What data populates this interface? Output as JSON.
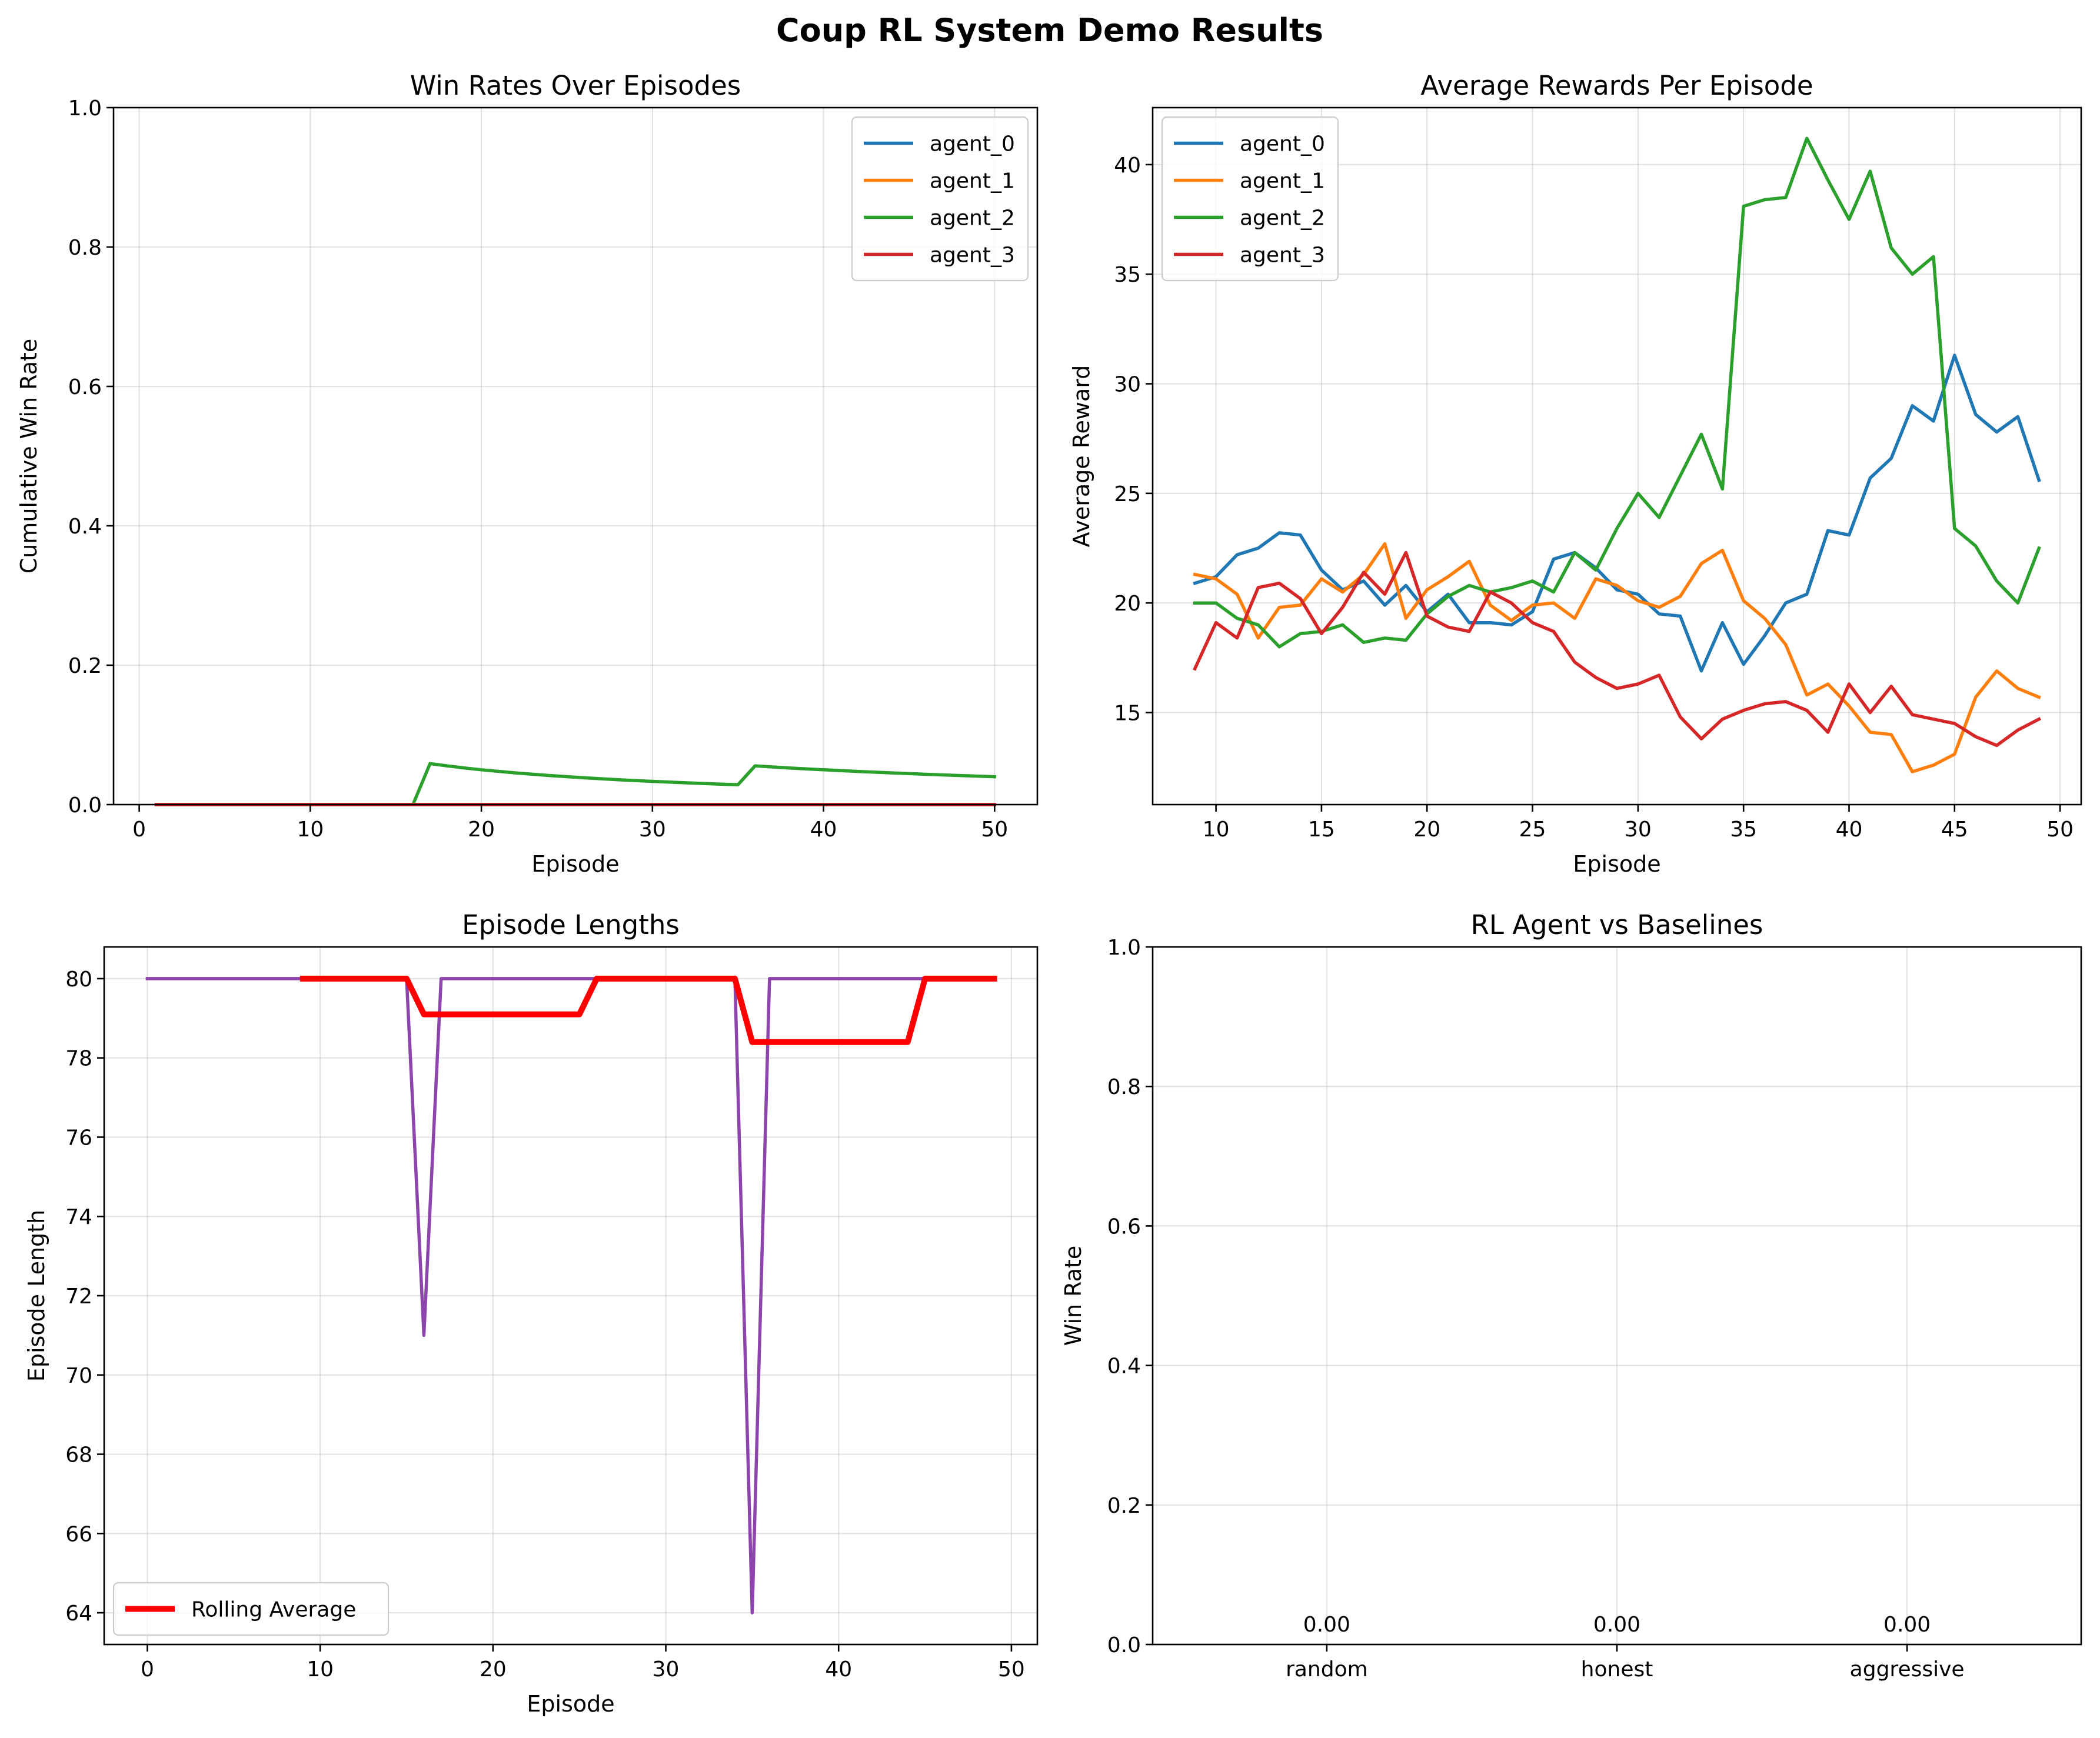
{
  "figure": {
    "suptitle": "Coup RL System Demo Results"
  },
  "chart_data": [
    {
      "type": "line",
      "title": "Win Rates Over Episodes",
      "xlabel": "Episode",
      "ylabel": "Cumulative Win Rate",
      "xlim": [
        -1.5,
        52.5
      ],
      "ylim": [
        0,
        1
      ],
      "xticks": [
        0,
        10,
        20,
        30,
        40,
        50
      ],
      "yticks": [
        0.0,
        0.2,
        0.4,
        0.6,
        0.8,
        1.0
      ],
      "xtick_labels": [
        "0",
        "10",
        "20",
        "30",
        "40",
        "50"
      ],
      "ytick_labels": [
        "0.0",
        "0.2",
        "0.4",
        "0.6",
        "0.8",
        "1.0"
      ],
      "grid": true,
      "legend_position": "top-right",
      "series": [
        {
          "name": "agent_0",
          "color": "#1f77b4",
          "width": 5.5,
          "x": [
            1,
            50
          ],
          "y": [
            0,
            0
          ]
        },
        {
          "name": "agent_1",
          "color": "#ff7f0e",
          "width": 5.5,
          "x": [
            1,
            50
          ],
          "y": [
            0,
            0
          ]
        },
        {
          "name": "agent_2",
          "color": "#2ca02c",
          "width": 5.5,
          "x": [
            1,
            16,
            17,
            18,
            19,
            20,
            22,
            24,
            26,
            28,
            30,
            32,
            34,
            35,
            36,
            38,
            40,
            42,
            44,
            46,
            48,
            50
          ],
          "y": [
            0,
            0,
            0.0588,
            0.0556,
            0.0526,
            0.05,
            0.0455,
            0.0417,
            0.0385,
            0.0357,
            0.0333,
            0.0312,
            0.0294,
            0.0286,
            0.0556,
            0.0526,
            0.05,
            0.0476,
            0.0455,
            0.0435,
            0.0417,
            0.04
          ]
        },
        {
          "name": "agent_3",
          "color": "#d62728",
          "width": 5.5,
          "x": [
            1,
            50
          ],
          "y": [
            0,
            0
          ]
        }
      ]
    },
    {
      "type": "line",
      "title": "Average Rewards Per Episode",
      "xlabel": "Episode",
      "ylabel": "Average Reward",
      "xlim": [
        7,
        51
      ],
      "ylim": [
        10.8,
        42.6
      ],
      "xticks": [
        10,
        15,
        20,
        25,
        30,
        35,
        40,
        45,
        50
      ],
      "yticks": [
        15,
        20,
        25,
        30,
        35,
        40
      ],
      "xtick_labels": [
        "10",
        "15",
        "20",
        "25",
        "30",
        "35",
        "40",
        "45",
        "50"
      ],
      "ytick_labels": [
        "15",
        "20",
        "25",
        "30",
        "35",
        "40"
      ],
      "grid": true,
      "legend_position": "top-left",
      "series": [
        {
          "name": "agent_0",
          "color": "#1f77b4",
          "width": 5.5,
          "x": [
            9,
            10,
            11,
            12,
            13,
            14,
            15,
            16,
            17,
            18,
            19,
            20,
            21,
            22,
            23,
            24,
            25,
            26,
            27,
            28,
            29,
            30,
            31,
            32,
            33,
            34,
            35,
            36,
            37,
            38,
            39,
            40,
            41,
            42,
            43,
            44,
            45,
            46,
            47,
            48,
            49
          ],
          "y": [
            20.9,
            21.2,
            22.2,
            22.5,
            23.2,
            23.1,
            21.5,
            20.6,
            21.0,
            19.9,
            20.8,
            19.6,
            20.4,
            19.1,
            19.1,
            19.0,
            19.6,
            22.0,
            22.3,
            21.6,
            20.6,
            20.4,
            19.5,
            19.4,
            16.9,
            19.1,
            17.2,
            18.5,
            20.0,
            20.4,
            23.3,
            23.1,
            25.7,
            26.6,
            29.0,
            28.3,
            31.3,
            28.6,
            27.8,
            28.5,
            25.6
          ]
        },
        {
          "name": "agent_1",
          "color": "#ff7f0e",
          "width": 5.5,
          "x": [
            9,
            10,
            11,
            12,
            13,
            14,
            15,
            16,
            17,
            18,
            19,
            20,
            21,
            22,
            23,
            24,
            25,
            26,
            27,
            28,
            29,
            30,
            31,
            32,
            33,
            34,
            35,
            36,
            37,
            38,
            39,
            40,
            41,
            42,
            43,
            44,
            45,
            46,
            47,
            48,
            49
          ],
          "y": [
            21.3,
            21.1,
            20.4,
            18.4,
            19.8,
            19.9,
            21.1,
            20.5,
            21.3,
            22.7,
            19.3,
            20.6,
            21.2,
            21.9,
            19.9,
            19.2,
            19.9,
            20.0,
            19.3,
            21.1,
            20.8,
            20.1,
            19.8,
            20.3,
            21.8,
            22.4,
            20.1,
            19.3,
            18.1,
            15.8,
            16.3,
            15.3,
            14.1,
            14.0,
            12.3,
            12.6,
            13.1,
            15.7,
            16.9,
            16.1,
            15.7
          ]
        },
        {
          "name": "agent_2",
          "color": "#2ca02c",
          "width": 5.5,
          "x": [
            9,
            10,
            11,
            12,
            13,
            14,
            15,
            16,
            17,
            18,
            19,
            20,
            21,
            22,
            23,
            24,
            25,
            26,
            27,
            28,
            29,
            30,
            31,
            32,
            33,
            34,
            35,
            36,
            37,
            38,
            39,
            40,
            41,
            42,
            43,
            44,
            45,
            46,
            47,
            48,
            49
          ],
          "y": [
            20.0,
            20.0,
            19.3,
            19.0,
            18.0,
            18.6,
            18.7,
            19.0,
            18.2,
            18.4,
            18.3,
            19.5,
            20.3,
            20.8,
            20.5,
            20.7,
            21.0,
            20.5,
            22.3,
            21.5,
            23.4,
            25.0,
            23.9,
            25.8,
            27.7,
            25.2,
            38.1,
            38.4,
            38.5,
            41.2,
            39.3,
            37.5,
            39.7,
            36.2,
            35.0,
            35.8,
            23.4,
            22.6,
            21.0,
            20.0,
            22.5
          ]
        },
        {
          "name": "agent_3",
          "color": "#d62728",
          "width": 5.5,
          "x": [
            9,
            10,
            11,
            12,
            13,
            14,
            15,
            16,
            17,
            18,
            19,
            20,
            21,
            22,
            23,
            24,
            25,
            26,
            27,
            28,
            29,
            30,
            31,
            32,
            33,
            34,
            35,
            36,
            37,
            38,
            39,
            40,
            41,
            42,
            43,
            44,
            45,
            46,
            47,
            48,
            49
          ],
          "y": [
            17.0,
            19.1,
            18.4,
            20.7,
            20.9,
            20.2,
            18.6,
            19.8,
            21.4,
            20.4,
            22.3,
            19.4,
            18.9,
            18.7,
            20.5,
            20.0,
            19.1,
            18.7,
            17.3,
            16.6,
            16.1,
            16.3,
            16.7,
            14.8,
            13.8,
            14.7,
            15.1,
            15.4,
            15.5,
            15.1,
            14.1,
            16.3,
            15.0,
            16.2,
            14.9,
            14.7,
            14.5,
            13.9,
            13.5,
            14.2,
            14.7
          ]
        }
      ]
    },
    {
      "type": "line",
      "title": "Episode Lengths",
      "xlabel": "Episode",
      "ylabel": "Episode Length",
      "xlim": [
        -2.5,
        51.5
      ],
      "ylim": [
        63.2,
        80.8
      ],
      "xticks": [
        0,
        10,
        20,
        30,
        40,
        50
      ],
      "yticks": [
        64,
        66,
        68,
        70,
        72,
        74,
        76,
        78,
        80
      ],
      "xtick_labels": [
        "0",
        "10",
        "20",
        "30",
        "40",
        "50"
      ],
      "ytick_labels": [
        "64",
        "66",
        "68",
        "70",
        "72",
        "74",
        "76",
        "78",
        "80"
      ],
      "grid": true,
      "legend_position": "bottom-left",
      "series": [
        {
          "name": "",
          "color": "#8e44ad",
          "width": 5.5,
          "x": [
            0,
            15,
            16,
            17,
            34,
            35,
            36,
            49
          ],
          "y": [
            80,
            80,
            71,
            80,
            80,
            64,
            80,
            80
          ]
        },
        {
          "name": "Rolling Average",
          "color": "#ff0000",
          "width": 10,
          "x": [
            9,
            15,
            16,
            25,
            26,
            34,
            35,
            44,
            45,
            49
          ],
          "y": [
            80,
            80,
            79.1,
            79.1,
            80,
            80,
            78.4,
            78.4,
            80,
            80
          ]
        }
      ]
    },
    {
      "type": "bar",
      "title": "RL Agent vs Baselines",
      "xlabel": "",
      "ylabel": "Win Rate",
      "categories": [
        "random",
        "honest",
        "aggressive"
      ],
      "values": [
        0.0,
        0.0,
        0.0
      ],
      "value_labels": [
        "0.00",
        "0.00",
        "0.00"
      ],
      "xlim": [
        -0.6,
        2.6
      ],
      "ylim": [
        0,
        1
      ],
      "yticks": [
        0.0,
        0.2,
        0.4,
        0.6,
        0.8,
        1.0
      ],
      "ytick_labels": [
        "0.0",
        "0.2",
        "0.4",
        "0.6",
        "0.8",
        "1.0"
      ],
      "grid": true,
      "color": "#1f77b4"
    }
  ]
}
